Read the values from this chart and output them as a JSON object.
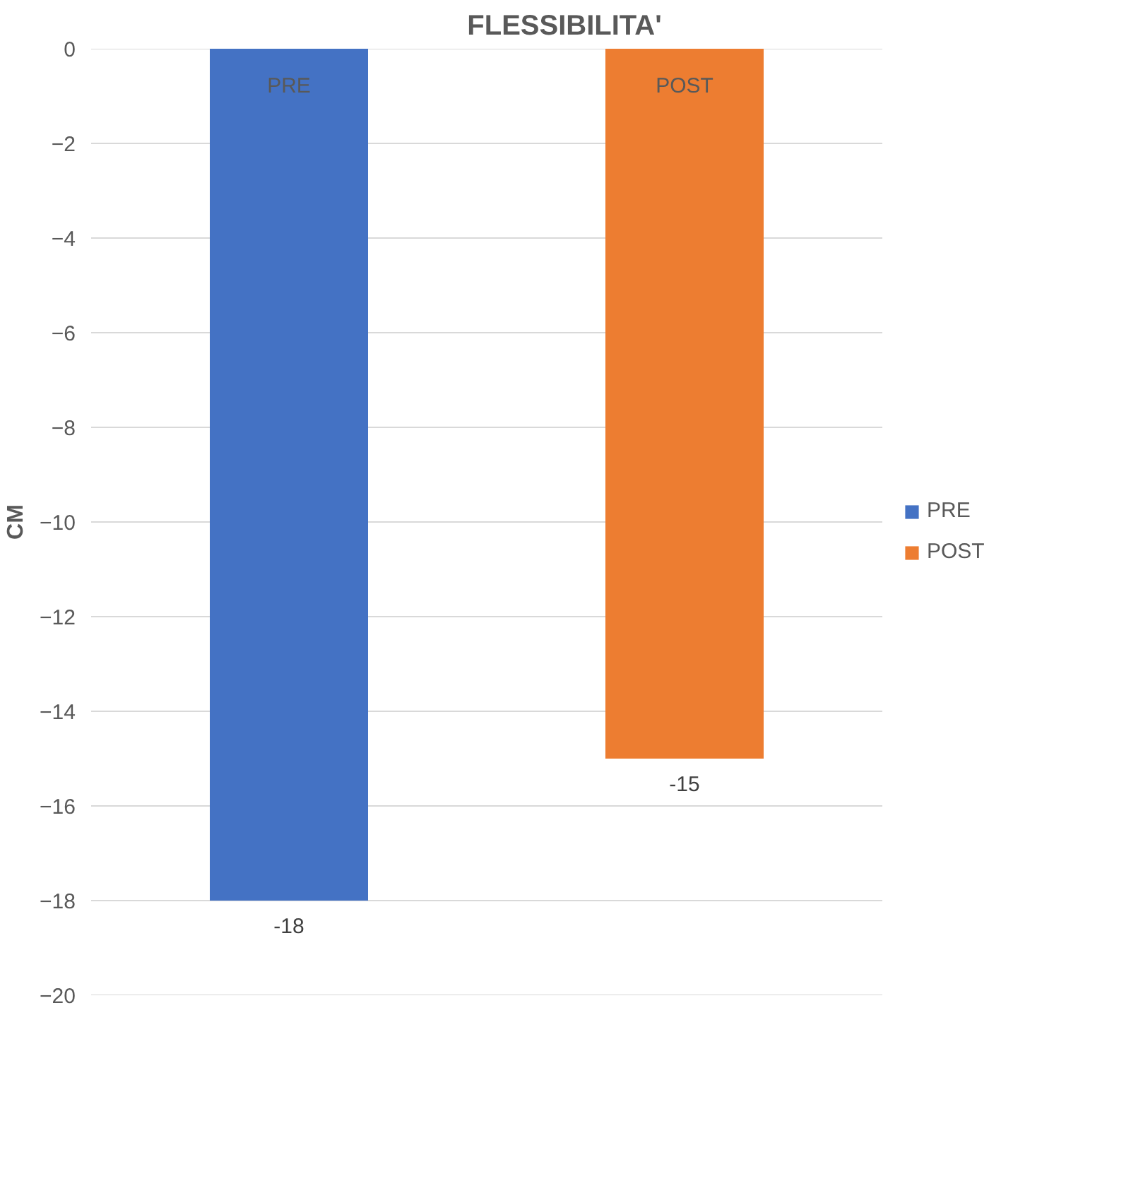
{
  "chart_data": {
    "type": "bar",
    "title": "FLESSIBILITA'",
    "ylabel": "CM",
    "categories": [
      "PRE",
      "POST"
    ],
    "series": [
      {
        "name": "PRE",
        "color": "#4472c4",
        "values": [
          -18,
          null
        ]
      },
      {
        "name": "POST",
        "color": "#ed7d31",
        "values": [
          null,
          -15
        ]
      }
    ],
    "stacked": true,
    "ylim": [
      -20,
      0
    ],
    "yticks": [
      0,
      -2,
      -4,
      -6,
      -8,
      -10,
      -12,
      -14,
      -16,
      -18,
      -20
    ],
    "grid": "y",
    "legend": "right",
    "data_labels": true
  }
}
